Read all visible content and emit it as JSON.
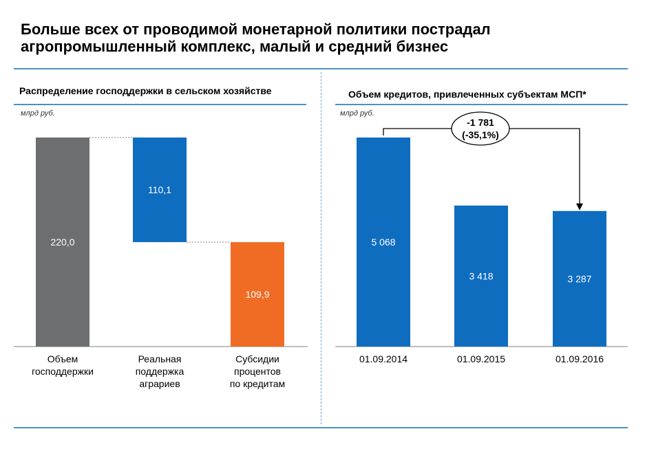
{
  "title_line1": "Больше всех от проводимой монетарной политики пострадал",
  "title_line2": "агропромышленный комплекс, малый и средний бизнес",
  "colors": {
    "rule": "#4a90c8",
    "gray": "#6d6e70",
    "blue": "#0f6dbf",
    "orange": "#f06b24",
    "label_on_bar": "#ffffff"
  },
  "chart_data": [
    {
      "type": "bar",
      "subtype": "waterfall",
      "title": "Распределение господдержки в сельском хозяйстве",
      "unit": "млрд руб.",
      "ylim": [
        0,
        220
      ],
      "grid": false,
      "bars": [
        {
          "category": [
            "Объем",
            "господдержки"
          ],
          "value": 220.0,
          "base": 0,
          "label": "220,0",
          "color": "#6d6e70"
        },
        {
          "category": [
            "Реальная",
            "поддержка",
            "аграриев"
          ],
          "value": 110.1,
          "base": 109.9,
          "label": "110,1",
          "color": "#0f6dbf"
        },
        {
          "category": [
            "Субсидии",
            "процентов",
            "по кредитам"
          ],
          "value": 109.9,
          "base": 0,
          "label": "109,9",
          "color": "#f06b24"
        }
      ]
    },
    {
      "type": "bar",
      "title": "Объем кредитов, привлеченных субъектам МСП*",
      "unit": "млрд руб.",
      "ylim": [
        0,
        5068
      ],
      "grid": false,
      "categories": [
        "01.09.2014",
        "01.09.2015",
        "01.09.2016"
      ],
      "values": [
        5068,
        3418,
        3287
      ],
      "labels": [
        "5 068",
        "3 418",
        "3 287"
      ],
      "color": "#0f6dbf",
      "annotation": {
        "line1": "-1 781",
        "line2": "(-35,1%)",
        "from": "01.09.2014",
        "to": "01.09.2016"
      }
    }
  ]
}
